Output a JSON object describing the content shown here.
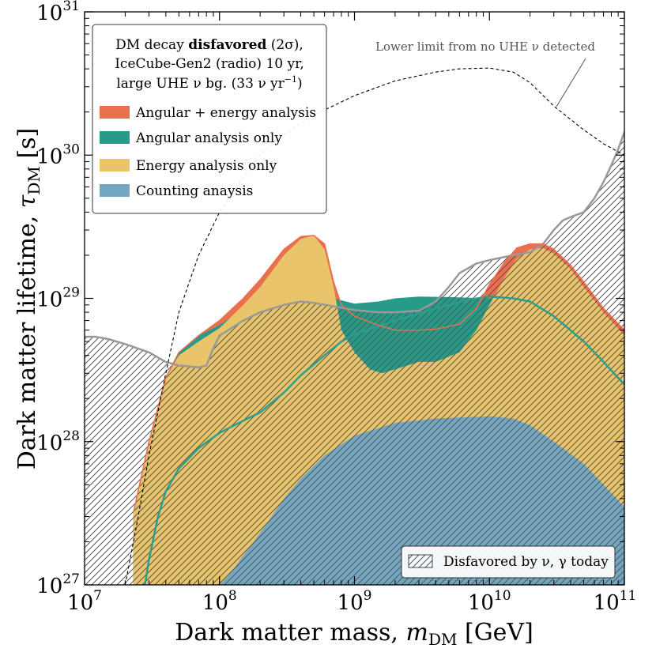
{
  "chart_data": {
    "type": "area",
    "xscale": "log",
    "yscale": "log",
    "xlim": [
      10000000.0,
      100000000000.0
    ],
    "ylim": [
      1e+27,
      1e+31
    ],
    "xlabel": "Dark matter mass, m_DM [GeV]",
    "xlabel_parts": {
      "pre": "Dark matter mass, ",
      "sym": "m",
      "sub": "DM",
      "post": " [GeV]"
    },
    "ylabel": "Dark matter lifetime, τ_DM [s]",
    "ylabel_parts": {
      "pre": "Dark matter lifetime, ",
      "sym": "τ",
      "sub": "DM",
      "post": " [s]"
    },
    "x_ticks": [
      {
        "value": 10000000.0,
        "base": "10",
        "exp": "7"
      },
      {
        "value": 100000000.0,
        "base": "10",
        "exp": "8"
      },
      {
        "value": 1000000000.0,
        "base": "10",
        "exp": "9"
      },
      {
        "value": 10000000000.0,
        "base": "10",
        "exp": "10"
      },
      {
        "value": 100000000000.0,
        "base": "10",
        "exp": "11"
      }
    ],
    "y_ticks": [
      {
        "value": 1e+27,
        "base": "10",
        "exp": "27"
      },
      {
        "value": 1e+28,
        "base": "10",
        "exp": "28"
      },
      {
        "value": 1e+29,
        "base": "10",
        "exp": "29"
      },
      {
        "value": 1e+30,
        "base": "10",
        "exp": "30"
      },
      {
        "value": 1e+31,
        "base": "10",
        "exp": "31"
      }
    ],
    "legend": {
      "placement": "top-left",
      "title_lines": [
        {
          "pre": "DM decay ",
          "bold": "disfavored",
          "post": " (2σ),"
        },
        {
          "text": "IceCube-Gen2 (radio) 10 yr,"
        },
        {
          "pre": "large UHE ν bg. (33 ν yr",
          "sup": "−1",
          "post": ")"
        }
      ],
      "entries": [
        {
          "label": "Angular + energy analysis",
          "color": "#E8704F"
        },
        {
          "label": "Angular analysis only",
          "color": "#279A88"
        },
        {
          "label": "Energy analysis only",
          "color": "#EAC46A"
        },
        {
          "label": "Counting anaysis",
          "color": "#73A7C1"
        }
      ]
    },
    "hatch_legend": {
      "placement": "bottom-right",
      "label": "Disfavored by ν, γ today"
    },
    "annotation": {
      "text": "Lower limit from no UHE ν detected"
    },
    "colors": {
      "angular_energy": "#E8704F",
      "angular": "#279A88",
      "energy": "#EAC46A",
      "counting": "#73A7C1",
      "angular_line": "#2A9D8F",
      "existing_edge": "#999999",
      "hatch": "#555555"
    },
    "series": [
      {
        "name": "Angular + energy analysis",
        "kind": "area",
        "points": [
          [
            23000000.0,
            3.2e+27
          ],
          [
            30000000.0,
            1e+28
          ],
          [
            40000000.0,
            2.8e+28
          ],
          [
            50000000.0,
            4.2e+28
          ],
          [
            70000000.0,
            5.5e+28
          ],
          [
            100000000.0,
            7e+28
          ],
          [
            150000000.0,
            1e+29
          ],
          [
            200000000.0,
            1.35e+29
          ],
          [
            300000000.0,
            2.2e+29
          ],
          [
            400000000.0,
            2.7e+29
          ],
          [
            500000000.0,
            2.75e+29
          ],
          [
            600000000.0,
            2.4e+29
          ],
          [
            700000000.0,
            1.3e+29
          ],
          [
            800000000.0,
            9e+28
          ],
          [
            1000000000.0,
            7.5e+28
          ],
          [
            1500000000.0,
            6.5e+28
          ],
          [
            2000000000.0,
            6e+28
          ],
          [
            3000000000.0,
            6e+28
          ],
          [
            4000000000.0,
            6.1e+28
          ],
          [
            6000000000.0,
            6.6e+28
          ],
          [
            8000000000.0,
            8.5e+28
          ],
          [
            10000000000.0,
            1.25e+29
          ],
          [
            13000000000.0,
            1.8e+29
          ],
          [
            16000000000.0,
            2.25e+29
          ],
          [
            20000000000.0,
            2.4e+29
          ],
          [
            25000000000.0,
            2.4e+29
          ],
          [
            30000000000.0,
            2.2e+29
          ],
          [
            40000000000.0,
            1.7e+29
          ],
          [
            50000000000.0,
            1.3e+29
          ],
          [
            70000000000.0,
            8.5e+28
          ],
          [
            100000000000.0,
            6e+28
          ]
        ]
      },
      {
        "name": "Angular analysis only",
        "kind": "area",
        "points": [
          [
            23000000.0,
            3.2e+27
          ],
          [
            30000000.0,
            1e+28
          ],
          [
            40000000.0,
            2.8e+28
          ],
          [
            50000000.0,
            4.2e+28
          ],
          [
            70000000.0,
            5.5e+28
          ],
          [
            100000000.0,
            6.5e+28
          ],
          [
            150000000.0,
            8.5e+28
          ],
          [
            200000000.0,
            1e+29
          ],
          [
            300000000.0,
            1.1e+29
          ],
          [
            400000000.0,
            1.15e+29
          ],
          [
            500000000.0,
            1.1e+29
          ],
          [
            700000000.0,
            1e+29
          ],
          [
            1000000000.0,
            9.2e+28
          ],
          [
            1500000000.0,
            9.5e+28
          ],
          [
            2000000000.0,
            1e+29
          ],
          [
            3000000000.0,
            1.03e+29
          ],
          [
            5000000000.0,
            1.02e+29
          ],
          [
            10000000000.0,
            1e+29
          ],
          [
            20000000000.0,
            8e+28
          ],
          [
            40000000000.0,
            5e+28
          ],
          [
            60000000000.0,
            3.5e+28
          ],
          [
            100000000000.0,
            2.5e+28
          ]
        ]
      },
      {
        "name": "Energy analysis only",
        "kind": "area",
        "points": [
          [
            23000000.0,
            3.2e+27
          ],
          [
            30000000.0,
            1e+28
          ],
          [
            40000000.0,
            2.8e+28
          ],
          [
            50000000.0,
            4e+28
          ],
          [
            70000000.0,
            5e+28
          ],
          [
            100000000.0,
            6.2e+28
          ],
          [
            150000000.0,
            9e+28
          ],
          [
            200000000.0,
            1.2e+29
          ],
          [
            300000000.0,
            2e+29
          ],
          [
            400000000.0,
            2.6e+29
          ],
          [
            500000000.0,
            2.75e+29
          ],
          [
            600000000.0,
            2.2e+29
          ],
          [
            700000000.0,
            1.2e+29
          ],
          [
            800000000.0,
            6e+28
          ],
          [
            1000000000.0,
            4.2e+28
          ],
          [
            1300000000.0,
            3.2e+28
          ],
          [
            1600000000.0,
            3e+28
          ],
          [
            2000000000.0,
            3.2e+28
          ],
          [
            3000000000.0,
            3.6e+28
          ],
          [
            4000000000.0,
            3.6e+28
          ],
          [
            6000000000.0,
            4.2e+28
          ],
          [
            8000000000.0,
            6e+28
          ],
          [
            10000000000.0,
            9e+28
          ],
          [
            13000000000.0,
            1.4e+29
          ],
          [
            16000000000.0,
            1.9e+29
          ],
          [
            20000000000.0,
            2.2e+29
          ],
          [
            25000000000.0,
            2.25e+29
          ],
          [
            30000000000.0,
            2.05e+29
          ],
          [
            40000000000.0,
            1.6e+29
          ],
          [
            50000000000.0,
            1.2e+29
          ],
          [
            70000000000.0,
            8e+28
          ],
          [
            100000000000.0,
            5.5e+28
          ]
        ]
      },
      {
        "name": "Counting anaysis",
        "kind": "area",
        "points": [
          [
            100000000.0,
            1e+27
          ],
          [
            120000000.0,
            1.2e+27
          ],
          [
            150000000.0,
            1.6e+27
          ],
          [
            200000000.0,
            2.3e+27
          ],
          [
            300000000.0,
            4e+27
          ],
          [
            400000000.0,
            5.5e+27
          ],
          [
            600000000.0,
            8e+27
          ],
          [
            1000000000.0,
            1.1e+28
          ],
          [
            2000000000.0,
            1.35e+28
          ],
          [
            4000000000.0,
            1.45e+28
          ],
          [
            10000000000.0,
            1.5e+28
          ],
          [
            15000000000.0,
            1.45e+28
          ],
          [
            20000000000.0,
            1.3e+28
          ],
          [
            30000000000.0,
            1e+28
          ],
          [
            50000000000.0,
            7e+27
          ],
          [
            70000000000.0,
            5e+27
          ],
          [
            100000000000.0,
            3.5e+27
          ]
        ]
      },
      {
        "name": "Angular analysis line",
        "kind": "line",
        "points": [
          [
            28000000.0,
            1e+27
          ],
          [
            30000000.0,
            1.5e+27
          ],
          [
            35000000.0,
            3e+27
          ],
          [
            40000000.0,
            4.5e+27
          ],
          [
            50000000.0,
            6.5e+27
          ],
          [
            70000000.0,
            9e+27
          ],
          [
            100000000.0,
            1.15e+28
          ],
          [
            150000000.0,
            1.4e+28
          ],
          [
            200000000.0,
            1.6e+28
          ],
          [
            300000000.0,
            2.2e+28
          ],
          [
            400000000.0,
            2.9e+28
          ],
          [
            600000000.0,
            4e+28
          ],
          [
            800000000.0,
            5e+28
          ],
          [
            1000000000.0,
            5.6e+28
          ],
          [
            2000000000.0,
            7e+28
          ],
          [
            4000000000.0,
            8.5e+28
          ],
          [
            7000000000.0,
            9.8e+28
          ],
          [
            10000000000.0,
            1.03e+29
          ],
          [
            15000000000.0,
            1e+29
          ],
          [
            20000000000.0,
            9.5e+28
          ],
          [
            30000000000.0,
            7.5e+28
          ],
          [
            50000000000.0,
            5e+28
          ],
          [
            70000000000.0,
            3.6e+28
          ],
          [
            100000000000.0,
            2.5e+28
          ]
        ]
      },
      {
        "name": "Disfavored by ν, γ today",
        "kind": "hatched-boundary",
        "points": [
          [
            10000000.0,
            5.4e+28
          ],
          [
            12000000.0,
            5.4e+28
          ],
          [
            15000000.0,
            5.2e+28
          ],
          [
            20000000.0,
            4.8e+28
          ],
          [
            30000000.0,
            4.2e+28
          ],
          [
            40000000.0,
            3.6e+28
          ],
          [
            50000000.0,
            3.4e+28
          ],
          [
            60000000.0,
            3.35e+28
          ],
          [
            70000000.0,
            3.3e+28
          ],
          [
            80000000.0,
            3.4e+28
          ],
          [
            90000000.0,
            4.5e+28
          ],
          [
            100000000.0,
            5.5e+28
          ],
          [
            150000000.0,
            7e+28
          ],
          [
            200000000.0,
            8e+28
          ],
          [
            300000000.0,
            9e+28
          ],
          [
            400000000.0,
            9.5e+28
          ],
          [
            500000000.0,
            9.3e+28
          ],
          [
            700000000.0,
            8.8e+28
          ],
          [
            1000000000.0,
            8.3e+28
          ],
          [
            1500000000.0,
            8e+28
          ],
          [
            2000000000.0,
            8e+28
          ],
          [
            3000000000.0,
            8.2e+28
          ],
          [
            4000000000.0,
            9.5e+28
          ],
          [
            5000000000.0,
            1.2e+29
          ],
          [
            6000000000.0,
            1.5e+29
          ],
          [
            8000000000.0,
            1.75e+29
          ],
          [
            10000000000.0,
            1.85e+29
          ],
          [
            15000000000.0,
            2e+29
          ],
          [
            20000000000.0,
            2.1e+29
          ],
          [
            25000000000.0,
            2.4e+29
          ],
          [
            30000000000.0,
            3e+29
          ],
          [
            35000000000.0,
            3.5e+29
          ],
          [
            40000000000.0,
            3.7e+29
          ],
          [
            50000000000.0,
            4e+29
          ],
          [
            60000000000.0,
            5e+29
          ],
          [
            70000000000.0,
            6.5e+29
          ],
          [
            80000000000.0,
            8.5e+29
          ],
          [
            90000000000.0,
            1.1e+30
          ],
          [
            100000000000.0,
            1.45e+30
          ]
        ]
      },
      {
        "name": "Lower limit from no UHE ν detected",
        "kind": "dashed-line",
        "points": [
          [
            20000000.0,
            1e+27
          ],
          [
            25000000.0,
            3e+27
          ],
          [
            30000000.0,
            8e+27
          ],
          [
            40000000.0,
            3e+28
          ],
          [
            50000000.0,
            8e+28
          ],
          [
            70000000.0,
            2e+29
          ],
          [
            100000000.0,
            4e+29
          ],
          [
            150000000.0,
            7e+29
          ],
          [
            200000000.0,
            1e+30
          ],
          [
            300000000.0,
            1.4e+30
          ],
          [
            500000000.0,
            1.9e+30
          ],
          [
            1000000000.0,
            2.6e+30
          ],
          [
            2000000000.0,
            3.3e+30
          ],
          [
            4000000000.0,
            3.8e+30
          ],
          [
            6000000000.0,
            4e+30
          ],
          [
            10000000000.0,
            4.05e+30
          ],
          [
            15000000000.0,
            3.8e+30
          ],
          [
            20000000000.0,
            3.2e+30
          ],
          [
            30000000000.0,
            2.2e+30
          ],
          [
            50000000000.0,
            1.5e+30
          ],
          [
            70000000000.0,
            1.2e+30
          ],
          [
            100000000000.0,
            1e+30
          ]
        ]
      }
    ]
  }
}
